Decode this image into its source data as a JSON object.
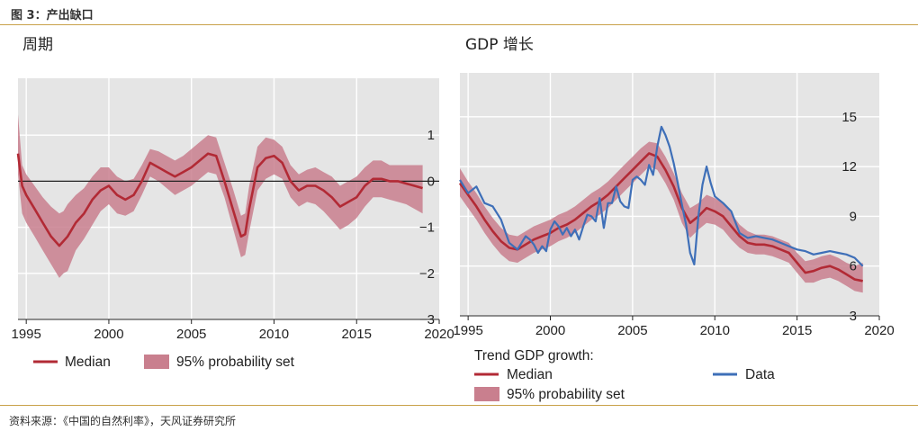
{
  "header": {
    "title": "图 3：产出缺口"
  },
  "footer": {
    "source": "资料来源：《中国的自然利率》，天风证券研究所"
  },
  "colors": {
    "median": "#b22a35",
    "band": "#c97f8e",
    "data": "#3e6fb8",
    "plot_bg": "#e5e5e5",
    "rule": "#c9a24a"
  },
  "chart_data": [
    {
      "type": "line",
      "title": "周期",
      "xlabel": "",
      "ylabel": "",
      "xlim": [
        1994.5,
        2020
      ],
      "ylim": [
        -3,
        2
      ],
      "x_ticks": [
        "1995",
        "2000",
        "2005",
        "2010",
        "2015",
        "2020"
      ],
      "y_ticks": [
        "1",
        "0",
        "−1",
        "−2",
        "−3"
      ],
      "zero_line": true,
      "grid": true,
      "legend_position": "bottom",
      "legend": {
        "median": "Median",
        "band": "95% probability set"
      },
      "series": [
        {
          "name": "Median",
          "kind": "line",
          "x": [
            1994.5,
            1994.75,
            1995,
            1995.5,
            1996,
            1996.5,
            1997,
            1997.25,
            1997.5,
            1998,
            1998.5,
            1999,
            1999.5,
            2000,
            2000.5,
            2001,
            2001.5,
            2002,
            2002.5,
            2003,
            2003.5,
            2004,
            2004.5,
            2005,
            2005.5,
            2006,
            2006.5,
            2007,
            2007.5,
            2008,
            2008.25,
            2008.5,
            2009,
            2009.5,
            2010,
            2010.5,
            2011,
            2011.5,
            2012,
            2012.5,
            2013,
            2013.5,
            2014,
            2014.5,
            2015,
            2015.5,
            2016,
            2016.5,
            2017,
            2017.5,
            2018,
            2018.5,
            2019
          ],
          "y": [
            0.6,
            -0.1,
            -0.3,
            -0.6,
            -0.9,
            -1.2,
            -1.4,
            -1.3,
            -1.2,
            -0.9,
            -0.7,
            -0.4,
            -0.2,
            -0.1,
            -0.3,
            -0.4,
            -0.3,
            0.0,
            0.4,
            0.3,
            0.2,
            0.1,
            0.2,
            0.3,
            0.45,
            0.6,
            0.55,
            0.0,
            -0.6,
            -1.2,
            -1.15,
            -0.6,
            0.3,
            0.5,
            0.55,
            0.4,
            0.0,
            -0.2,
            -0.1,
            -0.1,
            -0.2,
            -0.35,
            -0.55,
            -0.45,
            -0.35,
            -0.1,
            0.05,
            0.05,
            0.0,
            0.0,
            -0.05,
            -0.1,
            -0.15
          ]
        },
        {
          "name": "95% probability set",
          "kind": "band",
          "x": [
            1994.5,
            1994.75,
            1995,
            1995.5,
            1996,
            1996.5,
            1997,
            1997.25,
            1997.5,
            1998,
            1998.5,
            1999,
            1999.5,
            2000,
            2000.5,
            2001,
            2001.5,
            2002,
            2002.5,
            2003,
            2003.5,
            2004,
            2004.5,
            2005,
            2005.5,
            2006,
            2006.5,
            2007,
            2007.5,
            2008,
            2008.25,
            2008.5,
            2009,
            2009.5,
            2010,
            2010.5,
            2011,
            2011.5,
            2012,
            2012.5,
            2013,
            2013.5,
            2014,
            2014.5,
            2015,
            2015.5,
            2016,
            2016.5,
            2017,
            2017.5,
            2018,
            2018.5,
            2019
          ],
          "lower": [
            0.15,
            -0.7,
            -0.9,
            -1.2,
            -1.5,
            -1.8,
            -2.1,
            -2.0,
            -1.95,
            -1.5,
            -1.25,
            -0.95,
            -0.65,
            -0.5,
            -0.7,
            -0.75,
            -0.65,
            -0.3,
            0.1,
            0.0,
            -0.15,
            -0.3,
            -0.2,
            -0.1,
            0.05,
            0.2,
            0.15,
            -0.35,
            -1.0,
            -1.65,
            -1.6,
            -1.1,
            -0.2,
            0.05,
            0.15,
            0.05,
            -0.35,
            -0.55,
            -0.45,
            -0.5,
            -0.65,
            -0.85,
            -1.05,
            -0.95,
            -0.8,
            -0.55,
            -0.35,
            -0.35,
            -0.4,
            -0.45,
            -0.5,
            -0.6,
            -0.7
          ],
          "upper": [
            1.45,
            0.35,
            0.15,
            -0.1,
            -0.35,
            -0.55,
            -0.7,
            -0.65,
            -0.5,
            -0.3,
            -0.15,
            0.1,
            0.3,
            0.3,
            0.1,
            0.0,
            0.05,
            0.35,
            0.7,
            0.65,
            0.55,
            0.45,
            0.55,
            0.7,
            0.85,
            1.0,
            0.95,
            0.4,
            -0.15,
            -0.75,
            -0.7,
            -0.1,
            0.75,
            0.95,
            0.9,
            0.75,
            0.35,
            0.15,
            0.25,
            0.3,
            0.2,
            0.1,
            -0.1,
            0.0,
            0.1,
            0.3,
            0.45,
            0.45,
            0.35,
            0.35,
            0.35,
            0.35,
            0.35
          ]
        }
      ]
    },
    {
      "type": "line",
      "title": "GDP 增长",
      "xlabel": "",
      "ylabel": "",
      "xlim": [
        1994.5,
        2020
      ],
      "ylim": [
        3,
        17
      ],
      "x_ticks": [
        "1995",
        "2000",
        "2005",
        "2010",
        "2015",
        "2020"
      ],
      "y_ticks": [
        "15",
        "12",
        "9",
        "6",
        "3"
      ],
      "grid": true,
      "legend_position": "bottom",
      "legend": {
        "heading": "Trend GDP growth:",
        "median": "Median",
        "data": "Data",
        "band": "95% probability set"
      },
      "series": [
        {
          "name": "Median",
          "kind": "line",
          "x": [
            1994.5,
            1995,
            1995.5,
            1996,
            1996.5,
            1997,
            1997.5,
            1998,
            1998.5,
            1999,
            1999.5,
            2000,
            2000.5,
            2001,
            2001.5,
            2002,
            2002.5,
            2003,
            2003.5,
            2004,
            2004.5,
            2005,
            2005.5,
            2006,
            2006.5,
            2007,
            2007.5,
            2008,
            2008.5,
            2009,
            2009.5,
            2010,
            2010.5,
            2011,
            2011.5,
            2012,
            2012.5,
            2013,
            2013.5,
            2014,
            2014.5,
            2015,
            2015.5,
            2016,
            2016.5,
            2017,
            2017.5,
            2018,
            2018.5,
            2019
          ],
          "y": [
            11.0,
            10.3,
            9.6,
            8.8,
            8.1,
            7.5,
            7.1,
            7.0,
            7.3,
            7.6,
            7.8,
            8.0,
            8.3,
            8.5,
            8.8,
            9.2,
            9.6,
            9.9,
            10.3,
            10.8,
            11.3,
            11.8,
            12.3,
            12.8,
            12.6,
            11.8,
            10.8,
            9.5,
            8.6,
            9.0,
            9.5,
            9.3,
            9.0,
            8.4,
            7.8,
            7.4,
            7.3,
            7.3,
            7.2,
            7.0,
            6.8,
            6.2,
            5.6,
            5.7,
            5.9,
            6.0,
            5.8,
            5.5,
            5.2,
            5.1
          ]
        },
        {
          "name": "95% probability set",
          "kind": "band",
          "x": [
            1994.5,
            1995,
            1995.5,
            1996,
            1996.5,
            1997,
            1997.5,
            1998,
            1998.5,
            1999,
            1999.5,
            2000,
            2000.5,
            2001,
            2001.5,
            2002,
            2002.5,
            2003,
            2003.5,
            2004,
            2004.5,
            2005,
            2005.5,
            2006,
            2006.5,
            2007,
            2007.5,
            2008,
            2008.5,
            2009,
            2009.5,
            2010,
            2010.5,
            2011,
            2011.5,
            2012,
            2012.5,
            2013,
            2013.5,
            2014,
            2014.5,
            2015,
            2015.5,
            2016,
            2016.5,
            2017,
            2017.5,
            2018,
            2018.5,
            2019
          ],
          "lower": [
            10.2,
            9.5,
            8.8,
            8.0,
            7.3,
            6.7,
            6.3,
            6.2,
            6.5,
            6.8,
            7.0,
            7.2,
            7.5,
            7.7,
            8.0,
            8.4,
            8.8,
            9.1,
            9.5,
            10.0,
            10.5,
            11.0,
            11.5,
            12.0,
            11.8,
            11.0,
            10.0,
            8.6,
            7.7,
            8.2,
            8.6,
            8.5,
            8.2,
            7.6,
            7.1,
            6.8,
            6.7,
            6.7,
            6.6,
            6.4,
            6.2,
            5.6,
            5.0,
            5.0,
            5.2,
            5.3,
            5.1,
            4.8,
            4.5,
            4.4
          ],
          "upper": [
            11.9,
            11.1,
            10.4,
            9.6,
            8.9,
            8.3,
            7.9,
            7.8,
            8.1,
            8.4,
            8.6,
            8.8,
            9.1,
            9.3,
            9.6,
            10.0,
            10.4,
            10.7,
            11.1,
            11.6,
            12.1,
            12.6,
            13.1,
            13.5,
            13.4,
            12.6,
            11.6,
            10.4,
            9.5,
            9.8,
            10.3,
            10.1,
            9.8,
            9.2,
            8.5,
            8.1,
            7.9,
            7.9,
            7.8,
            7.6,
            7.4,
            6.8,
            6.3,
            6.4,
            6.6,
            6.7,
            6.5,
            6.2,
            6.0,
            6.2
          ]
        },
        {
          "name": "Data",
          "kind": "line",
          "x": [
            1994.5,
            1995,
            1995.5,
            1996,
            1996.5,
            1997,
            1997.5,
            1998,
            1998.25,
            1998.5,
            1998.75,
            1999,
            1999.25,
            1999.5,
            1999.75,
            2000,
            2000.25,
            2000.5,
            2000.75,
            2001,
            2001.25,
            2001.5,
            2001.75,
            2002,
            2002.25,
            2002.5,
            2002.75,
            2003,
            2003.25,
            2003.5,
            2003.75,
            2004,
            2004.25,
            2004.5,
            2004.75,
            2005,
            2005.25,
            2005.5,
            2005.75,
            2006,
            2006.25,
            2006.5,
            2006.75,
            2007,
            2007.25,
            2007.5,
            2007.75,
            2008,
            2008.25,
            2008.5,
            2008.75,
            2009,
            2009.25,
            2009.5,
            2009.75,
            2010,
            2010.5,
            2011,
            2011.5,
            2012,
            2012.5,
            2013,
            2013.5,
            2014,
            2014.5,
            2015,
            2015.5,
            2016,
            2016.5,
            2017,
            2017.5,
            2018,
            2018.5,
            2019
          ],
          "y": [
            11.2,
            10.4,
            10.8,
            9.8,
            9.6,
            8.8,
            7.4,
            7.0,
            7.4,
            7.8,
            7.6,
            7.3,
            6.8,
            7.2,
            6.9,
            8.2,
            8.7,
            8.4,
            7.9,
            8.3,
            7.8,
            8.2,
            7.6,
            8.4,
            9.1,
            9.0,
            8.7,
            10.1,
            8.3,
            9.8,
            9.8,
            10.8,
            9.9,
            9.6,
            9.5,
            11.2,
            11.4,
            11.2,
            10.9,
            12.1,
            11.5,
            13.2,
            14.4,
            13.9,
            13.2,
            12.2,
            11.0,
            9.7,
            8.5,
            6.8,
            6.1,
            9.0,
            10.9,
            12.0,
            11.0,
            10.2,
            9.8,
            9.3,
            8.0,
            7.7,
            7.8,
            7.7,
            7.6,
            7.4,
            7.2,
            7.0,
            6.9,
            6.7,
            6.8,
            6.9,
            6.8,
            6.7,
            6.5,
            6.0
          ]
        }
      ]
    }
  ]
}
